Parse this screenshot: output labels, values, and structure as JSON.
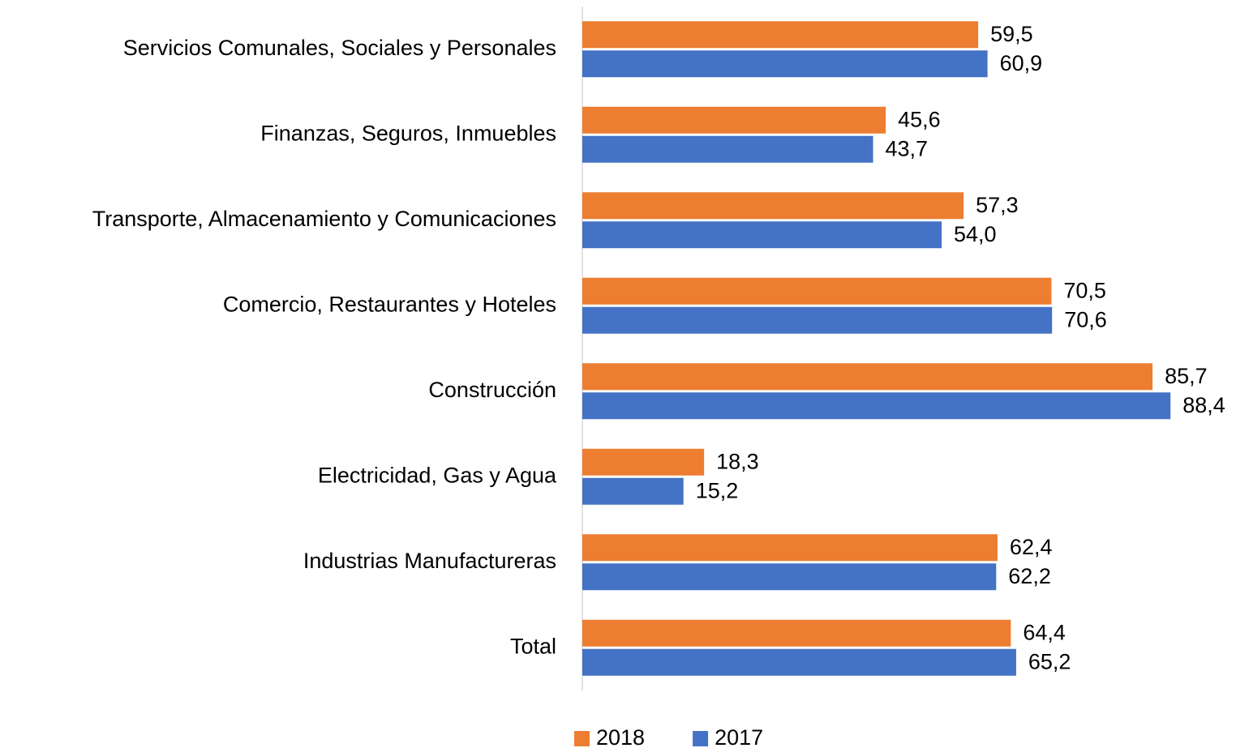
{
  "chart_data": {
    "type": "bar",
    "orientation": "horizontal",
    "categories": [
      "Servicios Comunales, Sociales y Personales",
      "Finanzas, Seguros, Inmuebles",
      "Transporte, Almacenamiento y Comunicaciones",
      "Comercio, Restaurantes y Hoteles",
      "Construcción",
      "Electricidad, Gas y Agua",
      "Industrias Manufactureras",
      "Total"
    ],
    "series": [
      {
        "name": "2018",
        "color": "#ed7d31",
        "values": [
          59.5,
          45.6,
          57.3,
          70.5,
          85.7,
          18.3,
          62.4,
          64.4
        ],
        "value_labels": [
          "59,5",
          "45,6",
          "57,3",
          "70,5",
          "85,7",
          "18,3",
          "62,4",
          "64,4"
        ]
      },
      {
        "name": "2017",
        "color": "#4472c4",
        "values": [
          60.9,
          43.7,
          54.0,
          70.6,
          88.4,
          15.2,
          62.2,
          65.2
        ],
        "value_labels": [
          "60,9",
          "43,7",
          "54,0",
          "70,6",
          "88,4",
          "15,2",
          "62,2",
          "65,2"
        ]
      }
    ],
    "xlim": [
      0,
      98
    ],
    "legend": "bottom"
  }
}
